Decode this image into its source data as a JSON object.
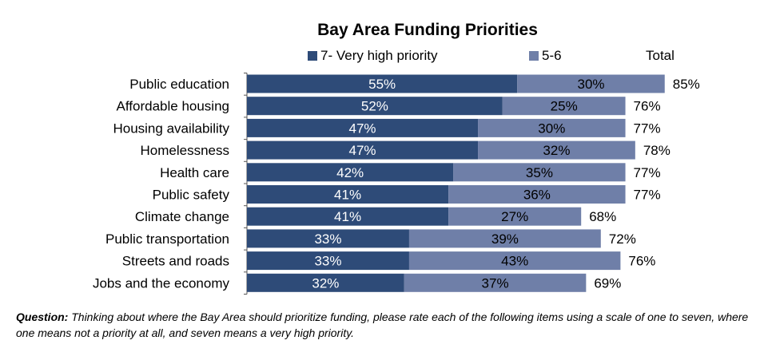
{
  "chart_data": {
    "type": "bar",
    "orientation": "horizontal",
    "stacked": true,
    "title": "Bay Area Funding Priorities",
    "categories": [
      "Public education",
      "Affordable housing",
      "Housing availability",
      "Homelessness",
      "Health care",
      "Public safety",
      "Climate change",
      "Public transportation",
      "Streets and roads",
      "Jobs and the economy"
    ],
    "series": [
      {
        "name": "7- Very high priority",
        "values": [
          55,
          52,
          47,
          47,
          42,
          41,
          41,
          33,
          33,
          32
        ],
        "labels": [
          "55%",
          "52%",
          "47%",
          "47%",
          "42%",
          "41%",
          "41%",
          "33%",
          "33%",
          "32%"
        ],
        "color": "#2e4b78"
      },
      {
        "name": "5-6",
        "values": [
          30,
          25,
          30,
          32,
          35,
          36,
          27,
          39,
          43,
          37
        ],
        "labels": [
          "30%",
          "25%",
          "30%",
          "32%",
          "35%",
          "36%",
          "27%",
          "39%",
          "43%",
          "37%"
        ],
        "color": "#6f7fa8"
      }
    ],
    "totals_header": "Total",
    "totals": [
      "85%",
      "76%",
      "77%",
      "78%",
      "77%",
      "77%",
      "68%",
      "72%",
      "76%",
      "69%"
    ],
    "xlim": [
      0,
      100
    ],
    "grid": false,
    "legend_position": "top"
  },
  "footnote": {
    "label": "Question:",
    "text": " Thinking about where the Bay Area should prioritize funding, please rate each of the following items using a scale of one to seven, where one means not a priority at all, and seven means a very high priority."
  }
}
